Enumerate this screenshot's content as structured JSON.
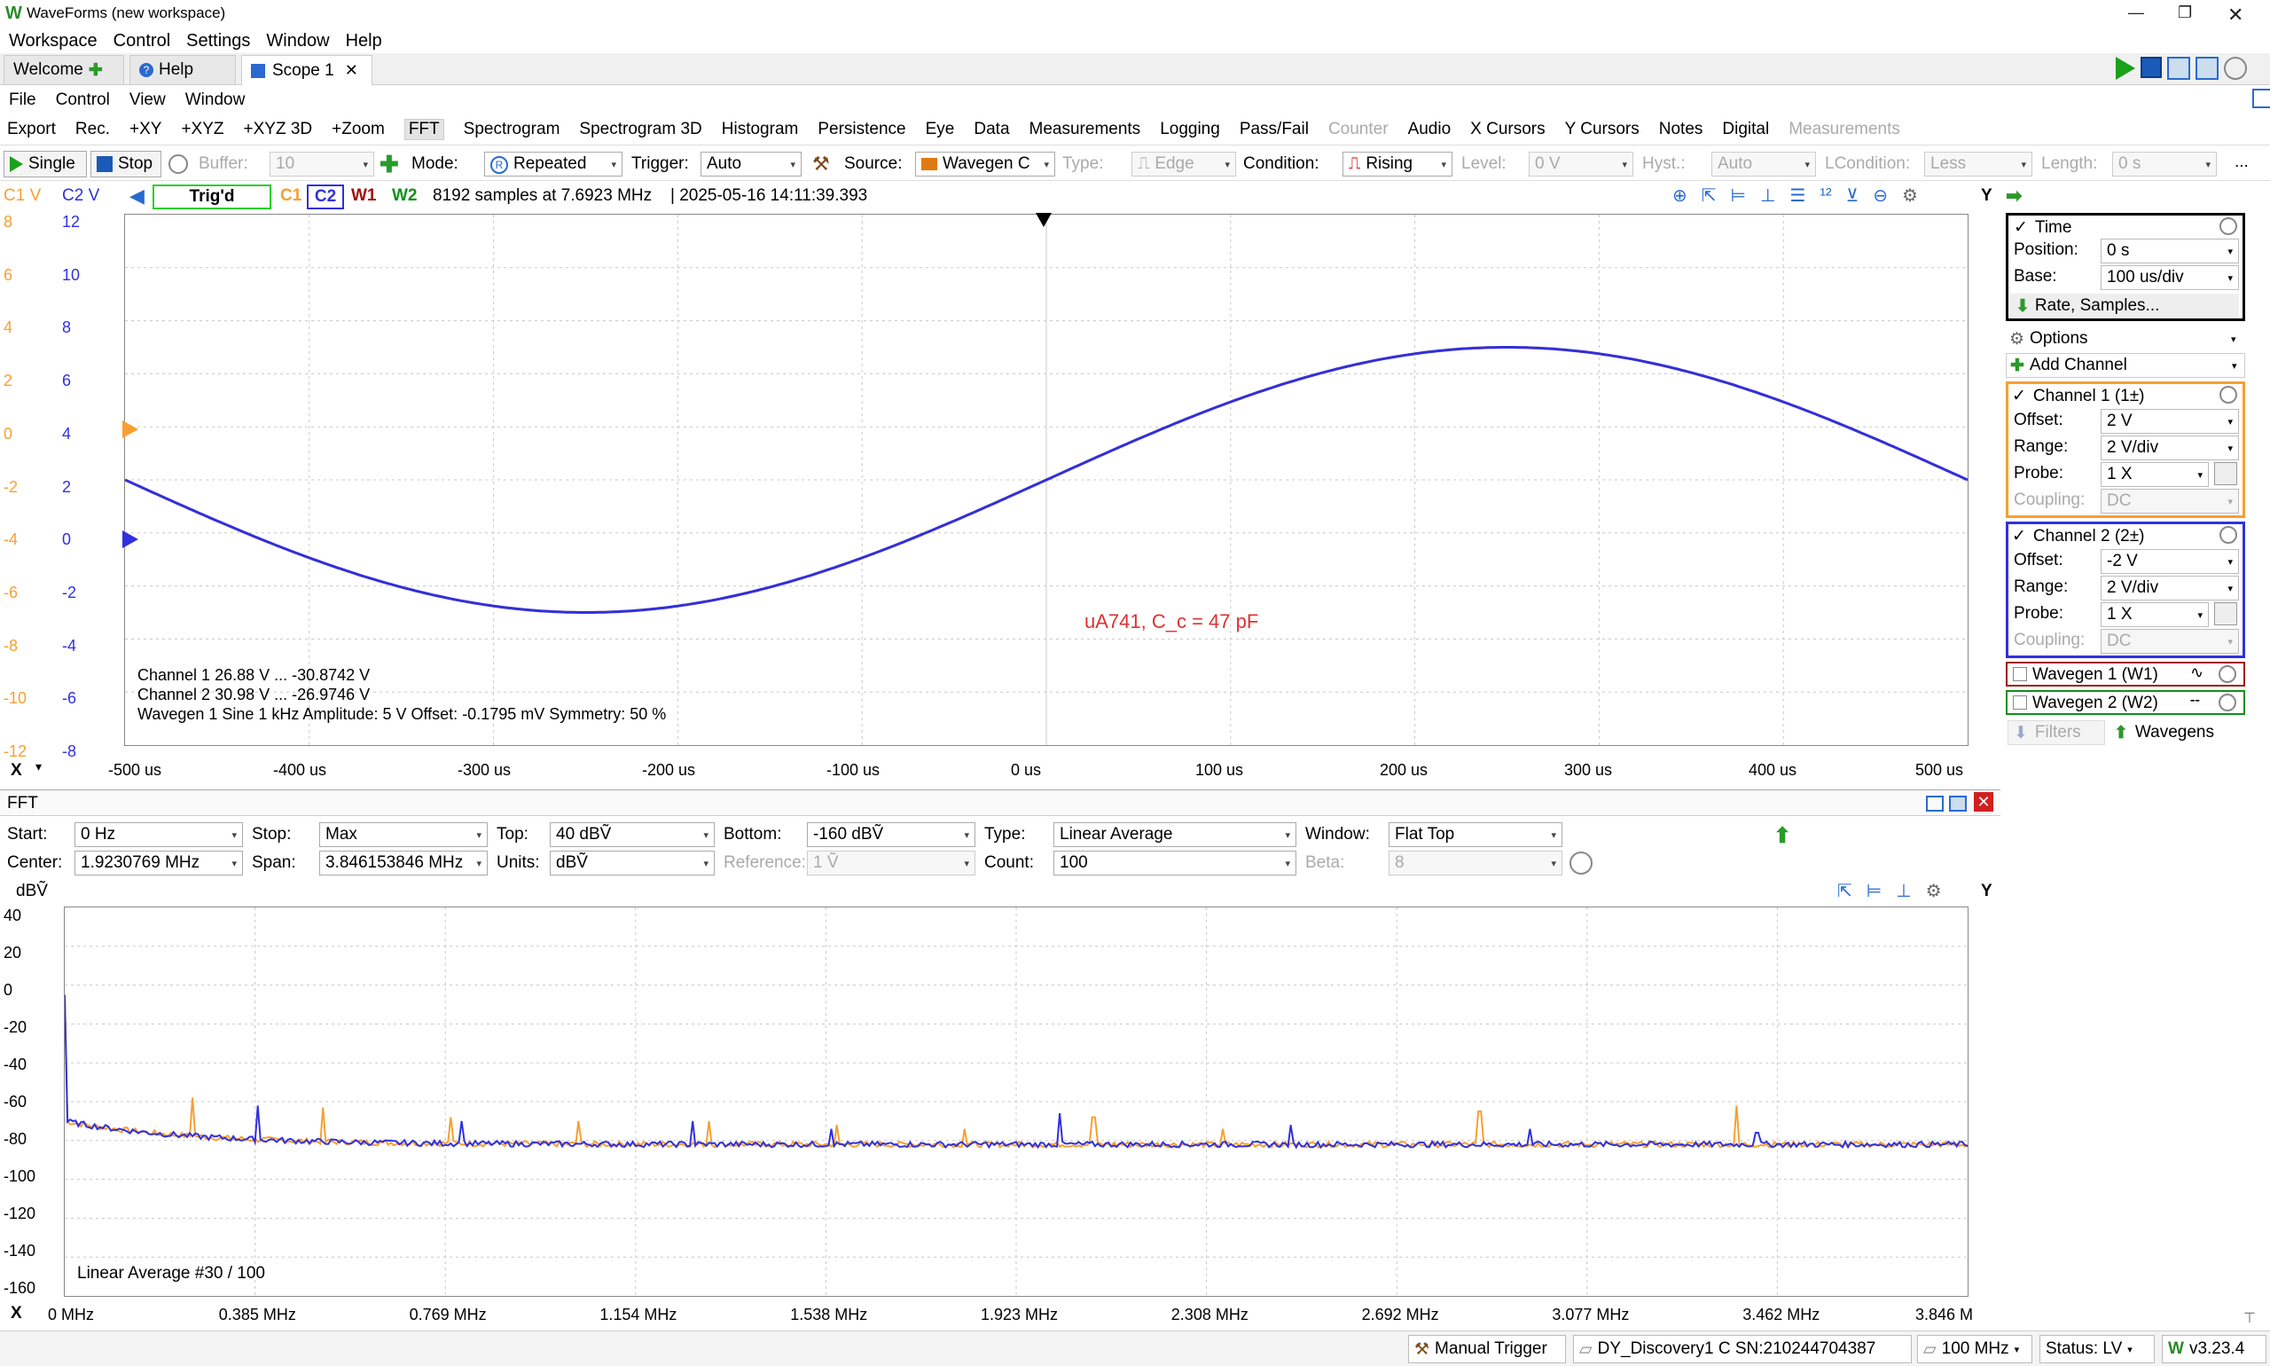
{
  "window": {
    "title": "WaveForms (new workspace)"
  },
  "menu": [
    "Workspace",
    "Control",
    "Settings",
    "Window",
    "Help"
  ],
  "tabs": [
    {
      "label": "Welcome"
    },
    {
      "label": "Help"
    },
    {
      "label": "Scope 1"
    }
  ],
  "scope_menu": [
    "File",
    "Control",
    "View",
    "Window"
  ],
  "scope_toolbar": [
    "Export",
    "Rec.",
    "+XY",
    "+XYZ",
    "+XYZ 3D",
    "+Zoom",
    "FFT",
    "Spectrogram",
    "Spectrogram 3D",
    "Histogram",
    "Persistence",
    "Eye",
    "Data",
    "Measurements",
    "Logging",
    "Pass/Fail",
    "Counter",
    "Audio",
    "X Cursors",
    "Y Cursors",
    "Notes",
    "Digital",
    "Measurements"
  ],
  "acq": {
    "single": "Single",
    "stop": "Stop",
    "buffer_label": "Buffer:",
    "buffer_value": "10",
    "mode_label": "Mode:",
    "mode_value": "Repeated",
    "trigger_label": "Trigger:",
    "trigger_value": "Auto",
    "source_label": "Source:",
    "source_value": "Wavegen C",
    "type_label": "Type:",
    "type_value": "Edge",
    "condition_label": "Condition:",
    "condition_value": "Rising",
    "level_label": "Level:",
    "level_value": "0 V",
    "hyst_label": "Hyst.:",
    "hyst_value": "Auto",
    "lcondition_label": "LCondition:",
    "lcondition_value": "Less",
    "length_label": "Length:",
    "length_value": "0 s",
    "more": "..."
  },
  "status_line": {
    "c1_axis": "C1 V",
    "c2_axis": "C2 V",
    "state": "Trig'd",
    "ch_tags": [
      "C1",
      "C2",
      "W1",
      "W2"
    ],
    "info": "8192 samples at 7.6923 MHz",
    "timestamp": "| 2025-05-16 14:11:39.393",
    "y_btn": "Y"
  },
  "scope_plot": {
    "c1_ticks": [
      "8",
      "6",
      "4",
      "2",
      "0",
      "-2",
      "-4",
      "-6",
      "-8",
      "-10",
      "-12"
    ],
    "c2_ticks": [
      "12",
      "10",
      "8",
      "6",
      "4",
      "2",
      "0",
      "-2",
      "-4",
      "-6",
      "-8"
    ],
    "x_ticks": [
      "-500 us",
      "-400 us",
      "-300 us",
      "-200 us",
      "-100 us",
      "0 us",
      "100 us",
      "200 us",
      "300 us",
      "400 us",
      "500 us"
    ],
    "x_btn": "X",
    "note": "uA741, C_c = 47 pF",
    "meas": [
      "Channel 1  26.88 V ... -30.8742 V",
      "Channel 2  30.98 V ... -26.9746 V",
      "Wavegen 1  Sine  1 kHz  Amplitude: 5 V  Offset: -0.1795 mV  Symmetry: 50 %"
    ]
  },
  "chart_data": [
    {
      "type": "line",
      "xlabel": "",
      "xlim_us": [
        -500,
        500
      ],
      "series": [
        {
          "name": "C1",
          "color": "#f7a030",
          "unit": "V",
          "ylim": [
            -12,
            8
          ],
          "freq_hz": 1000,
          "amplitude": 5,
          "offset": -2,
          "phase": "negative sine",
          "x_us": [
            -500,
            -250,
            0,
            250,
            500
          ],
          "y": [
            -2,
            -7,
            -2,
            3,
            -2
          ]
        },
        {
          "name": "C2",
          "color": "#3030e0",
          "unit": "V",
          "ylim": [
            -8,
            12
          ],
          "freq_hz": 1000,
          "amplitude": 5,
          "offset": 2,
          "phase": "negative sine",
          "x_us": [
            -500,
            -250,
            0,
            250,
            500
          ],
          "y": [
            2,
            -3,
            2,
            7,
            2
          ]
        }
      ]
    },
    {
      "type": "line",
      "title": "FFT",
      "ylabel": "dBV",
      "ylim": [
        -160,
        40
      ],
      "xlim_mhz": [
        0,
        3.846
      ],
      "noise_floor_dbv": -82,
      "series": [
        {
          "name": "C1",
          "color": "#f7a030",
          "peaks_mhz": [
            0.0,
            0.26,
            0.52,
            0.78,
            1.04,
            1.3,
            1.56,
            1.82,
            2.08,
            2.34,
            2.86,
            3.38
          ],
          "peaks_dbv": [
            -5,
            -58,
            -63,
            -68,
            -70,
            -70,
            -72,
            -74,
            -68,
            -74,
            -65,
            -62
          ]
        },
        {
          "name": "C2",
          "color": "#3030e0",
          "peaks_mhz": [
            0.0,
            0.39,
            0.8,
            1.27,
            1.55,
            2.01,
            2.48,
            2.96,
            3.42
          ],
          "peaks_dbv": [
            -5,
            -62,
            -70,
            -70,
            -74,
            -66,
            -72,
            -74,
            -76
          ]
        }
      ]
    }
  ],
  "fft": {
    "title": "FFT",
    "start_label": "Start:",
    "start_value": "0 Hz",
    "stop_label": "Stop:",
    "stop_value": "Max",
    "top_label": "Top:",
    "top_value": "40 dBṼ",
    "bottom_label": "Bottom:",
    "bottom_value": "-160 dBṼ",
    "type_label": "Type:",
    "type_value": "Linear Average",
    "window_label": "Window:",
    "window_value": "Flat Top",
    "center_label": "Center:",
    "center_value": "1.9230769 MHz",
    "span_label": "Span:",
    "span_value": "3.846153846 MHz",
    "units_label": "Units:",
    "units_value": "dBṼ",
    "reference_label": "Reference:",
    "reference_value": "1 Ṽ",
    "count_label": "Count:",
    "count_value": "100",
    "beta_label": "Beta:",
    "beta_value": "8",
    "yunit": "dBṼ",
    "y_btn": "Y",
    "x_btn": "X",
    "y_ticks": [
      "40",
      "20",
      "0",
      "-20",
      "-40",
      "-60",
      "-80",
      "-100",
      "-120",
      "-140",
      "-160"
    ],
    "x_ticks": [
      "0 MHz",
      "0.385 MHz",
      "0.769 MHz",
      "1.154 MHz",
      "1.538 MHz",
      "1.923 MHz",
      "2.308 MHz",
      "2.692 MHz",
      "3.077 MHz",
      "3.462 MHz",
      "3.846 M"
    ],
    "avg_note": "Linear Average #30 / 100"
  },
  "right_panel": {
    "time": {
      "title": "Time",
      "position_label": "Position:",
      "position_value": "0 s",
      "base_label": "Base:",
      "base_value": "100 us/div",
      "rate_btn": "Rate, Samples..."
    },
    "options": "Options",
    "add_channel": "Add Channel",
    "ch1": {
      "title": "Channel 1 (1±)",
      "offset_label": "Offset:",
      "offset_value": "2 V",
      "range_label": "Range:",
      "range_value": "2 V/div",
      "probe_label": "Probe:",
      "probe_value": "1 X",
      "coupling_label": "Coupling:",
      "coupling_value": "DC"
    },
    "ch2": {
      "title": "Channel 2 (2±)",
      "offset_label": "Offset:",
      "offset_value": "-2 V",
      "range_label": "Range:",
      "range_value": "2 V/div",
      "probe_label": "Probe:",
      "probe_value": "1 X",
      "coupling_label": "Coupling:",
      "coupling_value": "DC"
    },
    "w1": "Wavegen 1 (W1)",
    "w2": "Wavegen 2 (W2)",
    "filters": "Filters",
    "wavegens": "Wavegens"
  },
  "statusbar": {
    "manual_trigger": "Manual Trigger",
    "device": "DY_Discovery1 C SN:210244704387",
    "freq": "100 MHz",
    "status": "Status: LV",
    "version": "v3.23.4"
  }
}
